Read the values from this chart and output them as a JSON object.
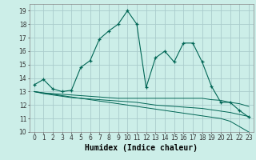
{
  "xlabel": "Humidex (Indice chaleur)",
  "background_color": "#cceee8",
  "grid_color": "#aacccc",
  "line_color": "#006655",
  "x_values": [
    0,
    1,
    2,
    3,
    4,
    5,
    6,
    7,
    8,
    9,
    10,
    11,
    12,
    13,
    14,
    15,
    16,
    17,
    18,
    19,
    20,
    21,
    22,
    23
  ],
  "main_line": [
    13.5,
    13.9,
    13.2,
    13.0,
    13.1,
    14.8,
    15.3,
    16.9,
    17.5,
    18.0,
    19.0,
    18.0,
    13.3,
    15.5,
    16.0,
    15.2,
    16.6,
    16.6,
    15.2,
    13.4,
    12.2,
    12.2,
    11.6,
    11.1
  ],
  "lower_line1": [
    13.0,
    12.9,
    12.85,
    12.8,
    12.75,
    12.7,
    12.65,
    12.6,
    12.55,
    12.5,
    12.5,
    12.5,
    12.5,
    12.5,
    12.5,
    12.5,
    12.5,
    12.5,
    12.5,
    12.4,
    12.35,
    12.2,
    12.1,
    11.9
  ],
  "lower_line2": [
    13.0,
    12.9,
    12.8,
    12.7,
    12.6,
    12.5,
    12.4,
    12.3,
    12.2,
    12.1,
    12.0,
    11.9,
    11.8,
    11.7,
    11.6,
    11.5,
    11.4,
    11.3,
    11.2,
    11.1,
    11.0,
    10.8,
    10.4,
    10.0
  ],
  "lower_line3": [
    13.0,
    12.85,
    12.75,
    12.65,
    12.55,
    12.5,
    12.45,
    12.4,
    12.35,
    12.3,
    12.25,
    12.2,
    12.1,
    12.0,
    11.95,
    11.9,
    11.85,
    11.8,
    11.75,
    11.65,
    11.55,
    11.45,
    11.3,
    11.15
  ],
  "ylim": [
    10,
    19.5
  ],
  "xlim": [
    -0.5,
    23.5
  ],
  "yticks": [
    10,
    11,
    12,
    13,
    14,
    15,
    16,
    17,
    18,
    19
  ],
  "xticks": [
    0,
    1,
    2,
    3,
    4,
    5,
    6,
    7,
    8,
    9,
    10,
    11,
    12,
    13,
    14,
    15,
    16,
    17,
    18,
    19,
    20,
    21,
    22,
    23
  ],
  "tick_fontsize": 5.5,
  "xlabel_fontsize": 7.0
}
